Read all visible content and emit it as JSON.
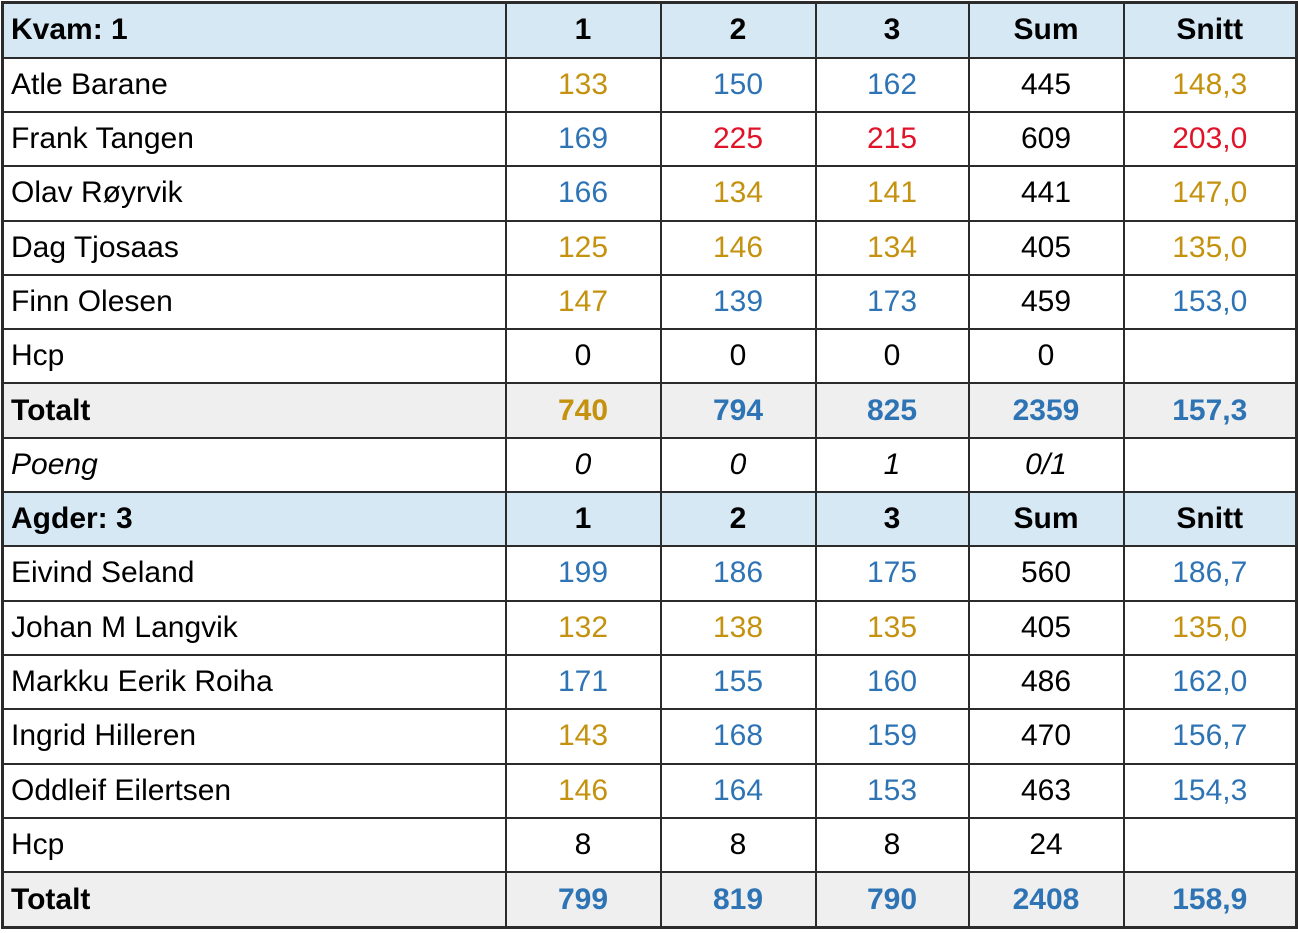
{
  "colors": {
    "gold": "#c4920f",
    "blue": "#2e74b5",
    "red": "#e01328",
    "black": "#000000",
    "header_bg": "#d7e8f5",
    "total_bg": "#efefef",
    "border": "#2b2b2b"
  },
  "table": {
    "rows": [
      {
        "kind": "team-header",
        "label": "Kvam: 1",
        "cells": [
          {
            "t": "1",
            "c": "black"
          },
          {
            "t": "2",
            "c": "black"
          },
          {
            "t": "3",
            "c": "black"
          },
          {
            "t": "Sum",
            "c": "black"
          },
          {
            "t": "Snitt",
            "c": "black"
          }
        ]
      },
      {
        "kind": "player",
        "label": "Atle Barane",
        "cells": [
          {
            "t": "133",
            "c": "gold"
          },
          {
            "t": "150",
            "c": "blue"
          },
          {
            "t": "162",
            "c": "blue"
          },
          {
            "t": "445",
            "c": "black"
          },
          {
            "t": "148,3",
            "c": "gold"
          }
        ]
      },
      {
        "kind": "player",
        "label": "Frank Tangen",
        "cells": [
          {
            "t": "169",
            "c": "blue"
          },
          {
            "t": "225",
            "c": "red"
          },
          {
            "t": "215",
            "c": "red"
          },
          {
            "t": "609",
            "c": "black"
          },
          {
            "t": "203,0",
            "c": "red"
          }
        ]
      },
      {
        "kind": "player",
        "label": "Olav Røyrvik",
        "cells": [
          {
            "t": "166",
            "c": "blue"
          },
          {
            "t": "134",
            "c": "gold"
          },
          {
            "t": "141",
            "c": "gold"
          },
          {
            "t": "441",
            "c": "black"
          },
          {
            "t": "147,0",
            "c": "gold"
          }
        ]
      },
      {
        "kind": "player",
        "label": "Dag Tjosaas",
        "cells": [
          {
            "t": "125",
            "c": "gold"
          },
          {
            "t": "146",
            "c": "gold"
          },
          {
            "t": "134",
            "c": "gold"
          },
          {
            "t": "405",
            "c": "black"
          },
          {
            "t": "135,0",
            "c": "gold"
          }
        ]
      },
      {
        "kind": "player",
        "label": "Finn Olesen",
        "cells": [
          {
            "t": "147",
            "c": "gold"
          },
          {
            "t": "139",
            "c": "blue"
          },
          {
            "t": "173",
            "c": "blue"
          },
          {
            "t": "459",
            "c": "black"
          },
          {
            "t": "153,0",
            "c": "blue"
          }
        ]
      },
      {
        "kind": "hcp",
        "label": "Hcp",
        "cells": [
          {
            "t": "0",
            "c": "black"
          },
          {
            "t": "0",
            "c": "black"
          },
          {
            "t": "0",
            "c": "black"
          },
          {
            "t": "0",
            "c": "black"
          },
          {
            "t": "",
            "c": "black"
          }
        ]
      },
      {
        "kind": "total",
        "label": "Totalt",
        "cells": [
          {
            "t": "740",
            "c": "gold"
          },
          {
            "t": "794",
            "c": "blue"
          },
          {
            "t": "825",
            "c": "blue"
          },
          {
            "t": "2359",
            "c": "blue"
          },
          {
            "t": "157,3",
            "c": "blue"
          }
        ]
      },
      {
        "kind": "poeng",
        "label": "Poeng",
        "cells": [
          {
            "t": "0",
            "c": "black"
          },
          {
            "t": "0",
            "c": "black"
          },
          {
            "t": "1",
            "c": "black"
          },
          {
            "t": "0/1",
            "c": "black"
          },
          {
            "t": "",
            "c": "black"
          }
        ]
      },
      {
        "kind": "team-header",
        "label": "Agder: 3",
        "cells": [
          {
            "t": "1",
            "c": "black"
          },
          {
            "t": "2",
            "c": "black"
          },
          {
            "t": "3",
            "c": "black"
          },
          {
            "t": "Sum",
            "c": "black"
          },
          {
            "t": "Snitt",
            "c": "black"
          }
        ]
      },
      {
        "kind": "player",
        "label": "Eivind Seland",
        "cells": [
          {
            "t": "199",
            "c": "blue"
          },
          {
            "t": "186",
            "c": "blue"
          },
          {
            "t": "175",
            "c": "blue"
          },
          {
            "t": "560",
            "c": "black"
          },
          {
            "t": "186,7",
            "c": "blue"
          }
        ]
      },
      {
        "kind": "player",
        "label": "Johan M Langvik",
        "cells": [
          {
            "t": "132",
            "c": "gold"
          },
          {
            "t": "138",
            "c": "gold"
          },
          {
            "t": "135",
            "c": "gold"
          },
          {
            "t": "405",
            "c": "black"
          },
          {
            "t": "135,0",
            "c": "gold"
          }
        ]
      },
      {
        "kind": "player",
        "label": "Markku Eerik Roiha",
        "cells": [
          {
            "t": "171",
            "c": "blue"
          },
          {
            "t": "155",
            "c": "blue"
          },
          {
            "t": "160",
            "c": "blue"
          },
          {
            "t": "486",
            "c": "black"
          },
          {
            "t": "162,0",
            "c": "blue"
          }
        ]
      },
      {
        "kind": "player",
        "label": "Ingrid Hilleren",
        "cells": [
          {
            "t": "143",
            "c": "gold"
          },
          {
            "t": "168",
            "c": "blue"
          },
          {
            "t": "159",
            "c": "blue"
          },
          {
            "t": "470",
            "c": "black"
          },
          {
            "t": "156,7",
            "c": "blue"
          }
        ]
      },
      {
        "kind": "player",
        "label": "Oddleif Eilertsen",
        "cells": [
          {
            "t": "146",
            "c": "gold"
          },
          {
            "t": "164",
            "c": "blue"
          },
          {
            "t": "153",
            "c": "blue"
          },
          {
            "t": "463",
            "c": "black"
          },
          {
            "t": "154,3",
            "c": "blue"
          }
        ]
      },
      {
        "kind": "hcp",
        "label": "Hcp",
        "cells": [
          {
            "t": "8",
            "c": "black"
          },
          {
            "t": "8",
            "c": "black"
          },
          {
            "t": "8",
            "c": "black"
          },
          {
            "t": "24",
            "c": "black"
          },
          {
            "t": "",
            "c": "black"
          }
        ]
      },
      {
        "kind": "total",
        "label": "Totalt",
        "cells": [
          {
            "t": "799",
            "c": "blue"
          },
          {
            "t": "819",
            "c": "blue"
          },
          {
            "t": "790",
            "c": "blue"
          },
          {
            "t": "2408",
            "c": "blue"
          },
          {
            "t": "158,9",
            "c": "blue"
          }
        ]
      }
    ]
  }
}
